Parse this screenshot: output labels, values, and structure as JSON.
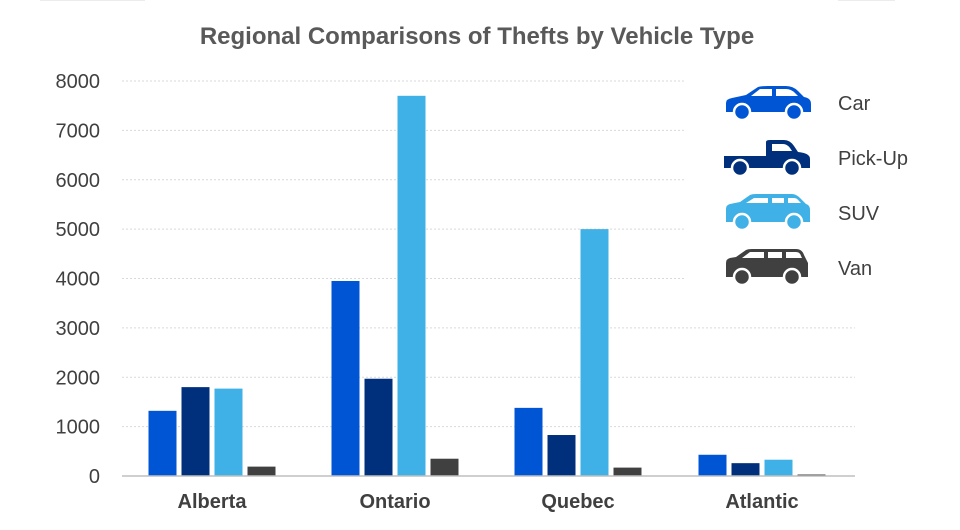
{
  "chart_data": {
    "type": "bar",
    "title": "Regional Comparisons of Thefts by Vehicle Type",
    "xlabel": "",
    "ylabel": "",
    "categories": [
      "Alberta",
      "Ontario",
      "Quebec",
      "Atlantic"
    ],
    "yticks": [
      "0",
      "1000",
      "2000",
      "3000",
      "4000",
      "5000",
      "6000",
      "7000",
      "8000"
    ],
    "ylim": [
      0,
      8000
    ],
    "grid": true,
    "legend_position": "top-right",
    "series": [
      {
        "name": "Car",
        "color": "#0055d4",
        "icon": "car-icon",
        "values": [
          1320,
          3950,
          1380,
          430
        ]
      },
      {
        "name": "Pick-Up",
        "color": "#002f7c",
        "icon": "pickup-icon",
        "values": [
          1800,
          1970,
          830,
          260
        ]
      },
      {
        "name": "SUV",
        "color": "#3fb1e6",
        "icon": "suv-icon",
        "values": [
          1770,
          7700,
          5000,
          330
        ]
      },
      {
        "name": "Van",
        "color": "#404040",
        "icon": "van-icon",
        "values": [
          190,
          350,
          170,
          30
        ]
      }
    ]
  }
}
